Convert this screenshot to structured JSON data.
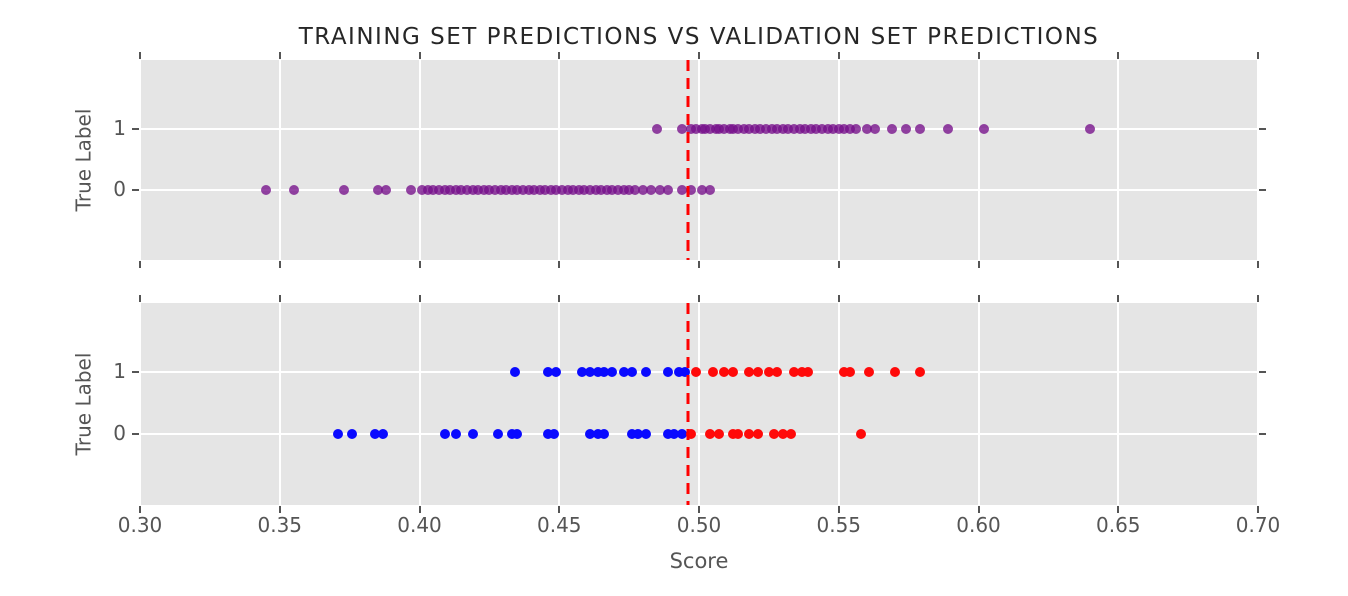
{
  "title": "TRAINING SET PREDICTIONS VS VALIDATION SET PREDICTIONS",
  "axes": {
    "xlabel": "Score",
    "ylabel": "True Label",
    "xlim": [
      0.3,
      0.7
    ],
    "x_tick_labels": [
      "0.30",
      "0.35",
      "0.40",
      "0.45",
      "0.50",
      "0.55",
      "0.60",
      "0.65",
      "0.70"
    ],
    "y_tick_labels": [
      "1",
      "0"
    ]
  },
  "colors": {
    "plot_background": "#e5e5e5",
    "gridline": "#ffffff",
    "training_points": "#76108a",
    "validation_below_threshold": "#0a0aff",
    "validation_above_threshold": "#ff0a0a",
    "threshold_line": "#ff0000",
    "tick_text": "#555555",
    "title_text": "#262626"
  },
  "chart_data": [
    {
      "type": "scatter",
      "name": "training-set-predictions",
      "xlim": [
        0.3,
        0.7
      ],
      "xticks": [
        0.3,
        0.35,
        0.4,
        0.45,
        0.5,
        0.55,
        0.6,
        0.65,
        0.7
      ],
      "yticks": [
        1,
        0
      ],
      "threshold_x": 0.496,
      "grid": true,
      "series": [
        {
          "name": "train-true-label-1",
          "y": 1,
          "color": "#76108a",
          "opacity": 0.78,
          "x": [
            0.485,
            0.494,
            0.497,
            0.499,
            0.501,
            0.502,
            0.504,
            0.506,
            0.507,
            0.509,
            0.511,
            0.512,
            0.514,
            0.516,
            0.518,
            0.52,
            0.522,
            0.524,
            0.526,
            0.528,
            0.53,
            0.532,
            0.534,
            0.536,
            0.538,
            0.54,
            0.542,
            0.544,
            0.546,
            0.548,
            0.55,
            0.552,
            0.554,
            0.556,
            0.56,
            0.563,
            0.569,
            0.574,
            0.579,
            0.589,
            0.602,
            0.64
          ]
        },
        {
          "name": "train-true-label-0",
          "y": 0,
          "color": "#76108a",
          "opacity": 0.78,
          "x": [
            0.345,
            0.355,
            0.373,
            0.385,
            0.388,
            0.397,
            0.401,
            0.403,
            0.405,
            0.407,
            0.409,
            0.411,
            0.413,
            0.415,
            0.417,
            0.419,
            0.421,
            0.423,
            0.425,
            0.427,
            0.429,
            0.431,
            0.433,
            0.435,
            0.437,
            0.439,
            0.441,
            0.443,
            0.445,
            0.447,
            0.449,
            0.451,
            0.453,
            0.455,
            0.457,
            0.459,
            0.461,
            0.463,
            0.465,
            0.467,
            0.469,
            0.471,
            0.473,
            0.475,
            0.477,
            0.48,
            0.483,
            0.486,
            0.489,
            0.494,
            0.497,
            0.501,
            0.504
          ]
        }
      ]
    },
    {
      "type": "scatter",
      "name": "validation-set-predictions",
      "xlim": [
        0.3,
        0.7
      ],
      "xticks": [
        0.3,
        0.35,
        0.4,
        0.45,
        0.5,
        0.55,
        0.6,
        0.65,
        0.7
      ],
      "yticks": [
        1,
        0
      ],
      "threshold_x": 0.496,
      "grid": true,
      "series": [
        {
          "name": "val-true-label-1-below-threshold",
          "y": 1,
          "color": "#0a0aff",
          "opacity": 1,
          "x": [
            0.434,
            0.446,
            0.449,
            0.458,
            0.461,
            0.464,
            0.466,
            0.469,
            0.473,
            0.476,
            0.481,
            0.489,
            0.493,
            0.495
          ]
        },
        {
          "name": "val-true-label-1-above-threshold",
          "y": 1,
          "color": "#ff0a0a",
          "opacity": 1,
          "x": [
            0.499,
            0.505,
            0.509,
            0.512,
            0.518,
            0.521,
            0.525,
            0.528,
            0.534,
            0.537,
            0.539,
            0.552,
            0.554,
            0.561,
            0.57,
            0.579
          ]
        },
        {
          "name": "val-true-label-0-below-threshold",
          "y": 0,
          "color": "#0a0aff",
          "opacity": 1,
          "x": [
            0.371,
            0.376,
            0.384,
            0.387,
            0.409,
            0.413,
            0.419,
            0.428,
            0.433,
            0.435,
            0.446,
            0.448,
            0.461,
            0.464,
            0.466,
            0.476,
            0.478,
            0.481,
            0.489,
            0.491,
            0.494
          ]
        },
        {
          "name": "val-true-label-0-above-threshold",
          "y": 0,
          "color": "#ff0a0a",
          "opacity": 1,
          "x": [
            0.497,
            0.504,
            0.507,
            0.512,
            0.514,
            0.518,
            0.521,
            0.527,
            0.53,
            0.533,
            0.558
          ]
        }
      ]
    }
  ]
}
